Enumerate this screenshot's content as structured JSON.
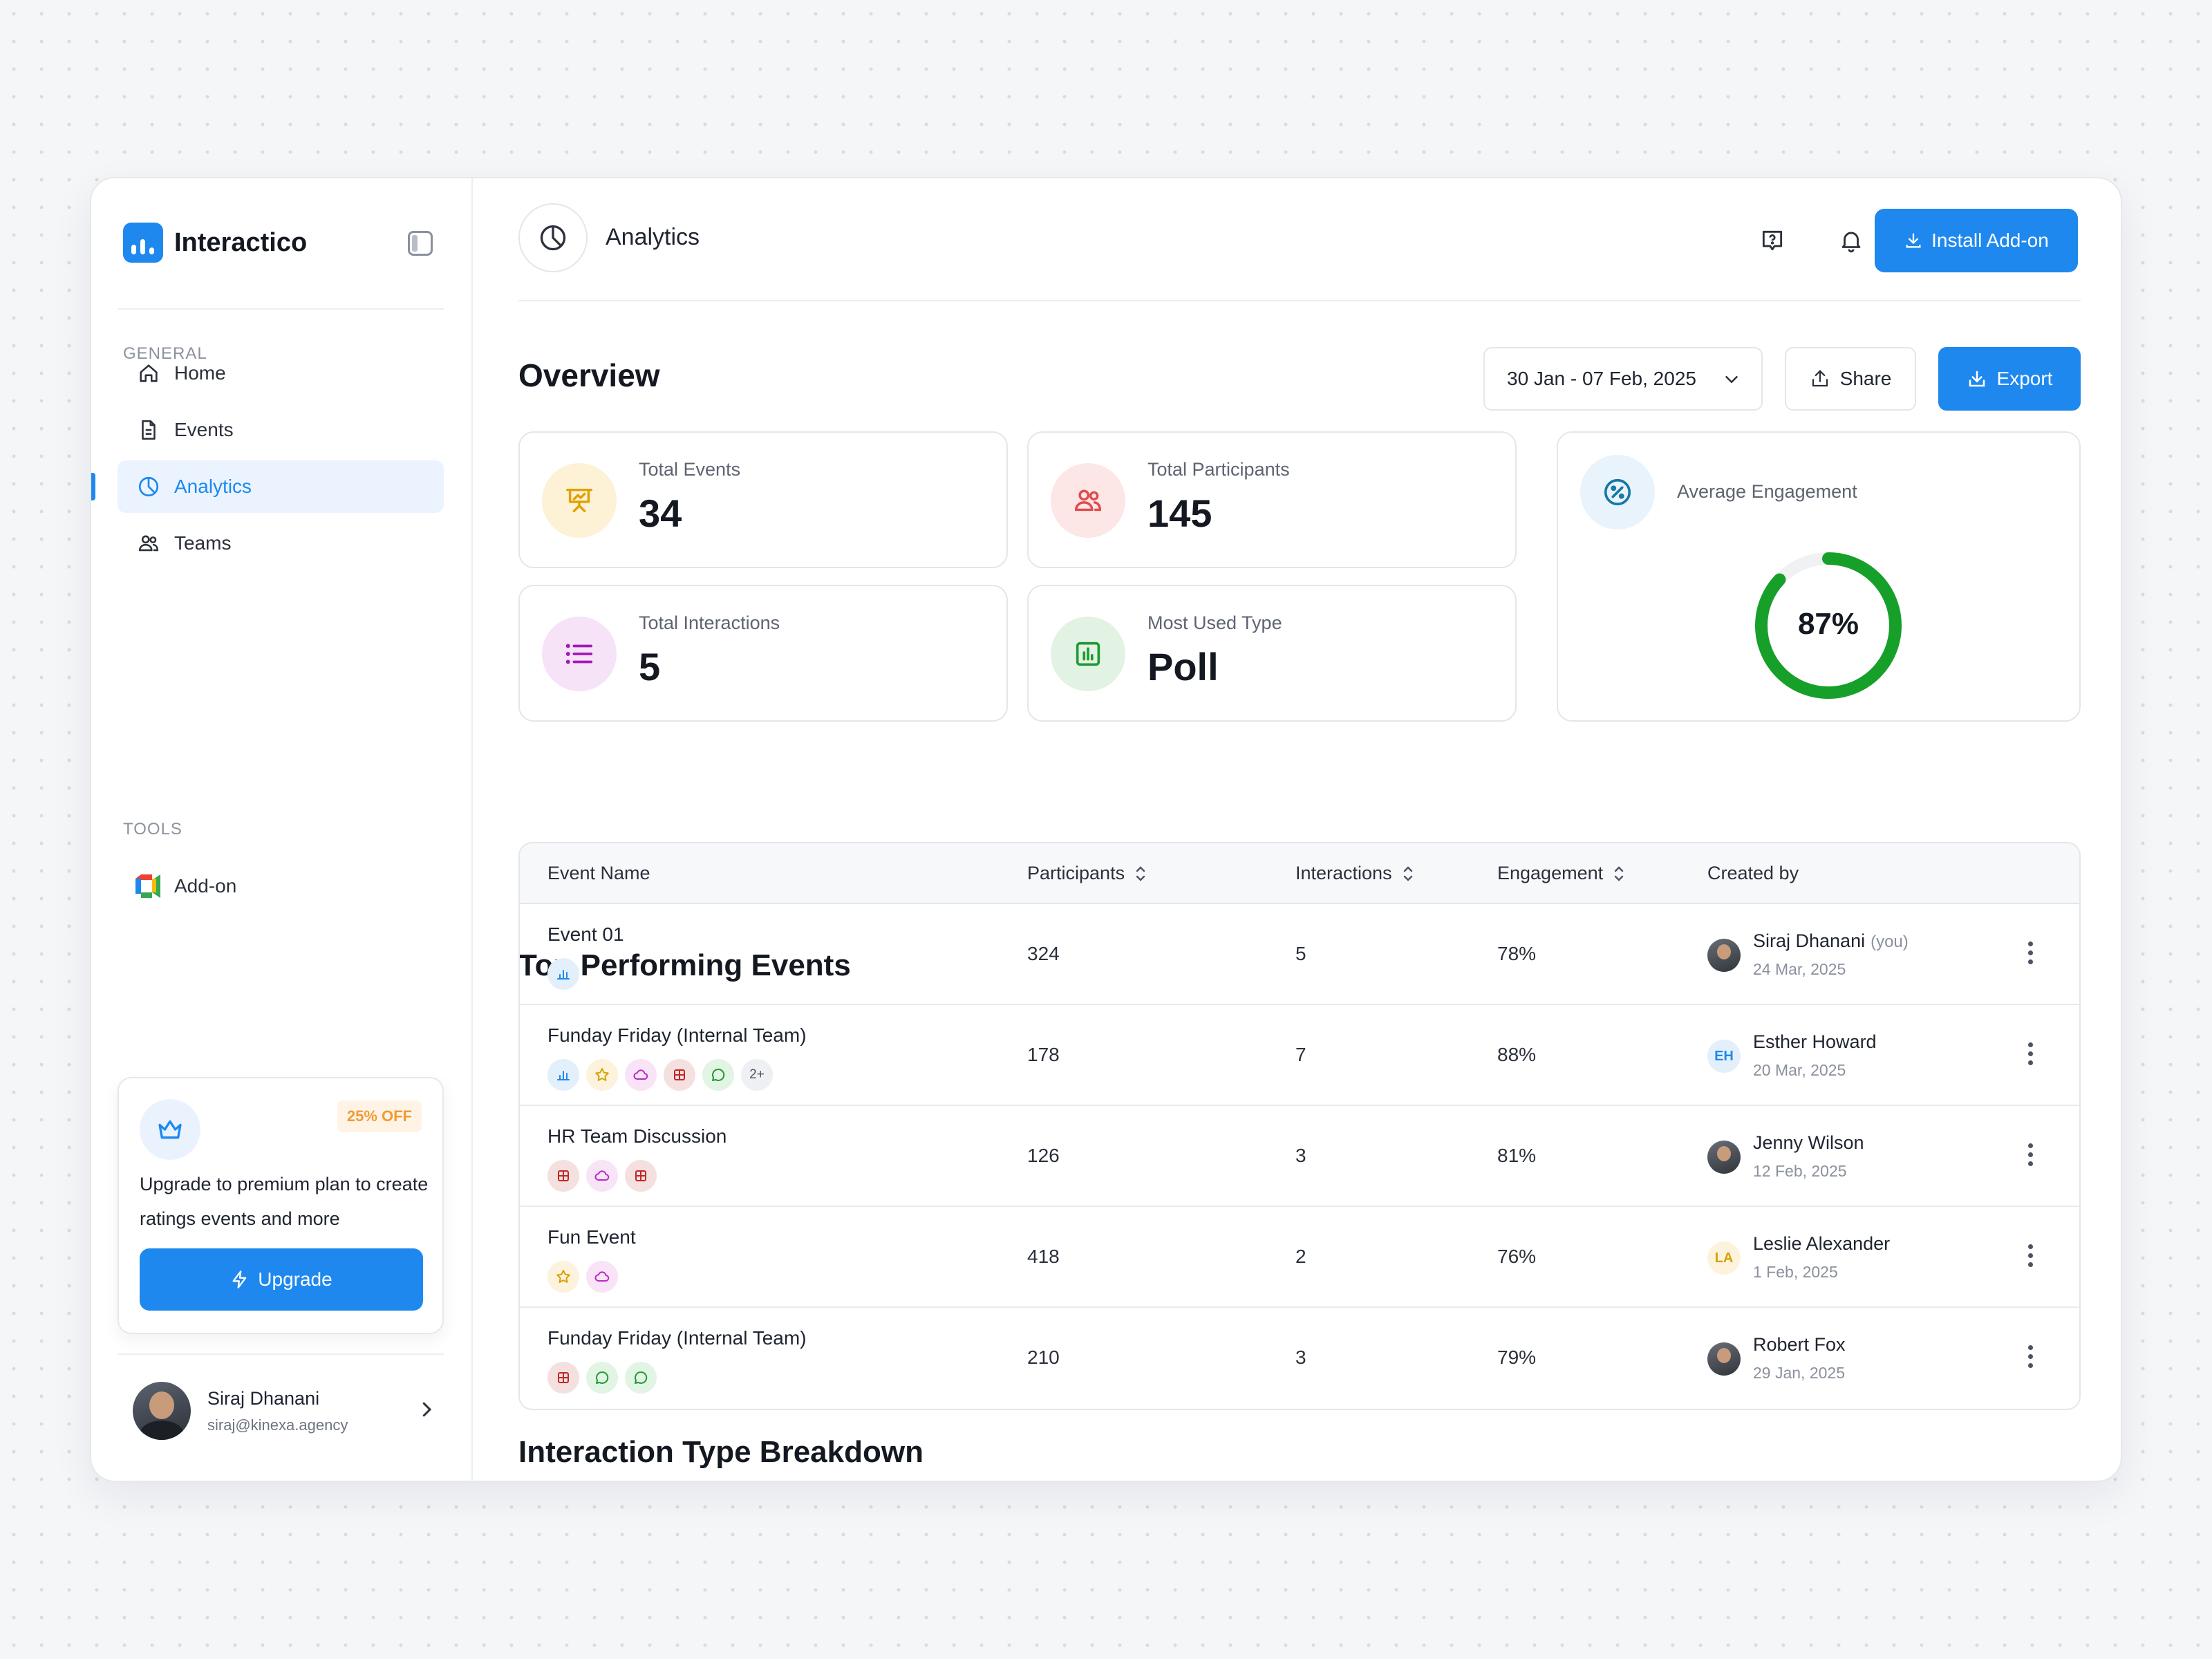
{
  "app": {
    "name": "Interactico"
  },
  "sidebar": {
    "general_label": "GENERAL",
    "tools_label": "TOOLS",
    "nav": [
      {
        "label": "Home",
        "icon": "home-icon"
      },
      {
        "label": "Events",
        "icon": "document-icon"
      },
      {
        "label": "Analytics",
        "icon": "pie-chart-icon"
      },
      {
        "label": "Teams",
        "icon": "users-icon"
      }
    ],
    "active_item": "Analytics",
    "tools": [
      {
        "label": "Add-on",
        "icon": "meet-addon-icon"
      }
    ],
    "promo": {
      "badge": "25% OFF",
      "text": "Upgrade to premium plan to create ratings events and more",
      "button": "Upgrade"
    },
    "user": {
      "name": "Siraj Dhanani",
      "email": "siraj@kinexa.agency"
    }
  },
  "header": {
    "title": "Analytics",
    "install_label": "Install Add-on"
  },
  "overview": {
    "title": "Overview",
    "date_range": "30 Jan - 07 Feb, 2025",
    "share_label": "Share",
    "export_label": "Export",
    "stats": {
      "total_events": {
        "label": "Total Events",
        "value": "34"
      },
      "total_participants": {
        "label": "Total Participants",
        "value": "145"
      },
      "total_interactions": {
        "label": "Total Interactions",
        "value": "5"
      },
      "most_used_type": {
        "label": "Most Used Type",
        "value": "Poll"
      }
    },
    "engagement": {
      "label": "Average Engagement",
      "value_text": "87%",
      "value": 0.87
    }
  },
  "table": {
    "title": "Top Performing Events",
    "columns": [
      "Event Name",
      "Participants",
      "Interactions",
      "Engagement",
      "Created by"
    ],
    "rows": [
      {
        "name": "Event 01",
        "chips": [
          "poll"
        ],
        "participants": "324",
        "interactions": "5",
        "engagement": "78%",
        "creator": "Siraj Dhanani",
        "you": "(you)",
        "date": "24 Mar, 2025",
        "avatar": "photo"
      },
      {
        "name": "Funday Friday (Internal Team)",
        "chips": [
          "poll",
          "rating",
          "cloud",
          "quiz",
          "chat"
        ],
        "more": "2+",
        "participants": "178",
        "interactions": "7",
        "engagement": "88%",
        "creator": "Esther Howard",
        "date": "20 Mar, 2025",
        "avatar": "EH"
      },
      {
        "name": "HR Team Discussion",
        "chips": [
          "quiz",
          "cloud",
          "quiz"
        ],
        "participants": "126",
        "interactions": "3",
        "engagement": "81%",
        "creator": "Jenny Wilson",
        "date": "12 Feb, 2025",
        "avatar": "photo"
      },
      {
        "name": "Fun Event",
        "chips": [
          "rating",
          "cloud"
        ],
        "participants": "418",
        "interactions": "2",
        "engagement": "76%",
        "creator": "Leslie Alexander",
        "date": "1 Feb, 2025",
        "avatar": "LA"
      },
      {
        "name": "Funday Friday (Internal Team)",
        "chips": [
          "quiz",
          "chat",
          "chat"
        ],
        "participants": "210",
        "interactions": "3",
        "engagement": "79%",
        "creator": "Robert Fox",
        "date": "29 Jan, 2025",
        "avatar": "photo"
      }
    ]
  },
  "next_section": {
    "title": "Interaction Type Breakdown"
  },
  "colors": {
    "primary": "#1e88ef",
    "success": "#16a02a",
    "warning": "#f29a35",
    "ring_track": "#f0f1f3"
  }
}
